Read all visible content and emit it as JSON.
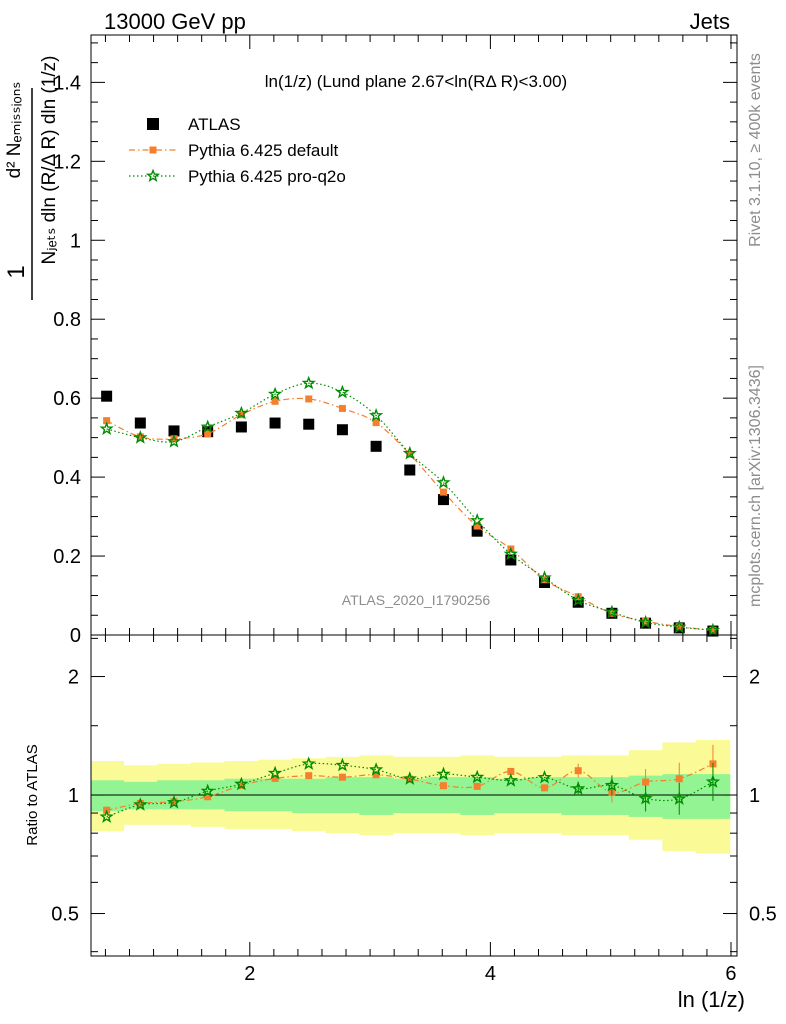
{
  "header": {
    "left": "13000 GeV pp",
    "right": "Jets"
  },
  "side_labels": {
    "top": "Rivet 3.1.10, ≥ 400k events",
    "bottom": "mcplots.cern.ch [arXiv:1306.3436]"
  },
  "watermark": "ATLAS_2020_I1790256",
  "chart_data": [
    {
      "type": "scatter",
      "panel": "main",
      "title": "ln(1/z) (Lund plane 2.67<ln(RΔ R)<3.00)",
      "ylabel_lines": [
        "1",
        "Nⱼₑₜₛ dln (R/Δ R) dln (1/z)",
        "d² Nₑₘᵢₛₛᵢₒₙₛ"
      ],
      "xlabel": "ln (1/z)",
      "xlim": [
        0.68,
        6.05
      ],
      "ylim": [
        0,
        1.52
      ],
      "yticks": [
        0,
        0.2,
        0.4,
        0.6,
        0.8,
        1,
        1.2,
        1.4
      ],
      "ytick_labels": [
        "0",
        "0.2",
        "0.4",
        "0.6",
        "0.8",
        "1",
        "1.2",
        "1.4"
      ],
      "xticks": [
        2,
        4,
        6
      ],
      "x": [
        0.81,
        1.09,
        1.37,
        1.65,
        1.93,
        2.21,
        2.49,
        2.77,
        3.05,
        3.33,
        3.61,
        3.89,
        4.17,
        4.45,
        4.73,
        5.01,
        5.29,
        5.57,
        5.85
      ],
      "legend_position": "top-left",
      "series": [
        {
          "name": "ATLAS",
          "color": "#000000",
          "marker": "square",
          "values": [
            0.605,
            0.537,
            0.517,
            0.515,
            0.527,
            0.537,
            0.534,
            0.52,
            0.478,
            0.418,
            0.343,
            0.263,
            0.19,
            0.133,
            0.083,
            0.055,
            0.03,
            0.018,
            0.01
          ]
        },
        {
          "name": "Pythia 6.425 default",
          "color": "#f67f2e",
          "marker": "circle",
          "values": [
            0.543,
            0.502,
            0.497,
            0.51,
            0.558,
            0.592,
            0.598,
            0.574,
            0.538,
            0.458,
            0.362,
            0.276,
            0.218,
            0.14,
            0.097,
            0.055,
            0.035,
            0.021,
            0.012
          ]
        },
        {
          "name": "Pythia 6.425 pro-q2o",
          "color": "#008c00",
          "marker": "star",
          "values": [
            0.522,
            0.5,
            0.49,
            0.527,
            0.562,
            0.61,
            0.638,
            0.615,
            0.556,
            0.46,
            0.386,
            0.29,
            0.205,
            0.145,
            0.088,
            0.058,
            0.032,
            0.02,
            0.012
          ]
        }
      ]
    },
    {
      "type": "scatter",
      "panel": "ratio",
      "ylabel": "Ratio to ATLAS",
      "xlabel": "ln (1/z)",
      "ylim": [
        0.39,
        2.55
      ],
      "ylog": true,
      "yticks": [
        0.5,
        1,
        2
      ],
      "ytick_labels": [
        "0.5",
        "1",
        "2"
      ],
      "xtick_labels": [
        "2",
        "4",
        "6"
      ],
      "band_edges": [
        0.68,
        0.95,
        1.23,
        1.51,
        1.79,
        2.07,
        2.35,
        2.63,
        2.91,
        3.19,
        3.47,
        3.75,
        4.03,
        4.31,
        4.59,
        4.87,
        5.15,
        5.43,
        5.71,
        5.99
      ],
      "band_inner": {
        "color": "#92f492",
        "low": [
          0.91,
          0.92,
          0.92,
          0.92,
          0.91,
          0.91,
          0.9,
          0.9,
          0.89,
          0.9,
          0.9,
          0.89,
          0.9,
          0.9,
          0.89,
          0.89,
          0.88,
          0.87,
          0.87
        ],
        "high": [
          1.09,
          1.08,
          1.09,
          1.09,
          1.1,
          1.1,
          1.1,
          1.11,
          1.11,
          1.1,
          1.11,
          1.11,
          1.1,
          1.11,
          1.11,
          1.11,
          1.12,
          1.13,
          1.13
        ]
      },
      "band_outer": {
        "color": "#fafa96",
        "low": [
          0.81,
          0.84,
          0.84,
          0.83,
          0.82,
          0.82,
          0.81,
          0.8,
          0.79,
          0.8,
          0.8,
          0.79,
          0.8,
          0.8,
          0.79,
          0.79,
          0.77,
          0.72,
          0.71
        ],
        "high": [
          1.22,
          1.19,
          1.2,
          1.21,
          1.22,
          1.23,
          1.24,
          1.25,
          1.26,
          1.25,
          1.25,
          1.26,
          1.25,
          1.25,
          1.26,
          1.26,
          1.3,
          1.36,
          1.38
        ]
      },
      "series": [
        {
          "name": "Pythia 6.425 default",
          "color": "#f67f2e",
          "values": [
            0.915,
            0.952,
            0.962,
            0.99,
            1.058,
            1.102,
            1.12,
            1.11,
            1.126,
            1.097,
            1.056,
            1.052,
            1.148,
            1.043,
            1.153,
            1.015,
            1.079,
            1.1,
            1.2
          ]
        },
        {
          "name": "Pythia 6.425 pro-q2o",
          "color": "#008c00",
          "values": [
            0.88,
            0.945,
            0.957,
            1.023,
            1.066,
            1.136,
            1.2,
            1.19,
            1.16,
            1.1,
            1.13,
            1.11,
            1.088,
            1.108,
            1.038,
            1.058,
            0.98,
            0.978,
            1.08
          ]
        }
      ]
    }
  ]
}
